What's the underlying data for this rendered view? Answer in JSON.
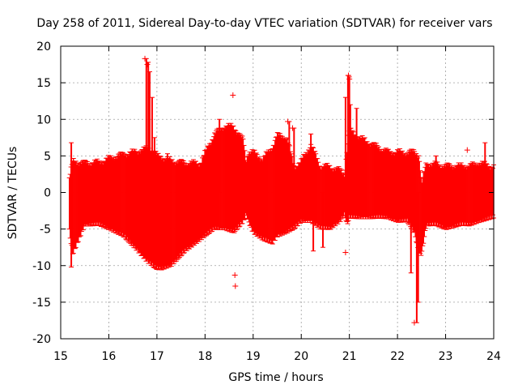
{
  "chart_data": {
    "type": "scatter",
    "title": "Day 258 of 2011, Sidereal Day-to-day VTEC variation (SDTVAR) for receiver vars",
    "xlabel": "GPS time / hours",
    "ylabel": "SDTVAR / TECUs",
    "xlim": [
      15,
      24
    ],
    "ylim": [
      -20,
      20
    ],
    "xticks": [
      15,
      16,
      17,
      18,
      19,
      20,
      21,
      22,
      23,
      24
    ],
    "yticks": [
      -20,
      -15,
      -10,
      -5,
      0,
      5,
      10,
      15,
      20
    ],
    "x_tick_labels": [
      "15",
      "16",
      "17",
      "18",
      "19",
      "20",
      "21",
      "22",
      "23",
      "24"
    ],
    "y_tick_labels": [
      "-20",
      "-15",
      "-10",
      "-5",
      "0",
      "5",
      "10",
      "15",
      "20"
    ],
    "grid": true,
    "marker": "+",
    "color": "#ff0000",
    "series": [
      {
        "name": "SDTVAR",
        "envelope": {
          "x": [
            15.18,
            15.25,
            15.5,
            15.8,
            16.0,
            16.3,
            16.6,
            16.8,
            16.95,
            17.0,
            17.1,
            17.3,
            17.6,
            17.9,
            18.2,
            18.4,
            18.6,
            18.8,
            18.85,
            18.9,
            19.0,
            19.2,
            19.4,
            19.5,
            19.7,
            19.85,
            20.0,
            20.2,
            20.4,
            20.6,
            20.8,
            20.9,
            20.95,
            21.0,
            21.2,
            21.5,
            21.8,
            22.0,
            22.2,
            22.35,
            22.45,
            22.5,
            22.6,
            22.8,
            23.0,
            23.3,
            23.5,
            23.7,
            24.0
          ],
          "upper": [
            2.0,
            4.2,
            4.0,
            4.1,
            4.6,
            5.2,
            5.6,
            6.0,
            5.5,
            5.0,
            4.8,
            4.3,
            4.0,
            4.0,
            8.0,
            9.0,
            9.0,
            7.0,
            4.2,
            5.5,
            5.5,
            4.5,
            6.2,
            7.8,
            7.5,
            3.5,
            4.2,
            6.5,
            3.5,
            3.5,
            3.0,
            2.5,
            6.0,
            8.5,
            7.5,
            6.5,
            5.5,
            5.5,
            5.4,
            5.6,
            5.0,
            1.0,
            4.0,
            3.8,
            3.6,
            3.6,
            3.6,
            4.0,
            3.5
          ],
          "lower": [
            -5.0,
            -8.0,
            -4.0,
            -4.0,
            -4.5,
            -5.5,
            -7.5,
            -9.0,
            -9.8,
            -10.0,
            -10.0,
            -9.5,
            -7.5,
            -6.0,
            -4.5,
            -4.5,
            -5.0,
            -3.5,
            -2.5,
            -3.5,
            -5.0,
            -6.0,
            -6.5,
            -5.5,
            -5.0,
            -4.5,
            -3.5,
            -3.5,
            -4.5,
            -4.5,
            -3.5,
            -2.5,
            -4.0,
            -3.0,
            -3.0,
            -3.0,
            -3.0,
            -3.5,
            -3.5,
            -5.0,
            -8.0,
            -8.0,
            -4.0,
            -4.0,
            -4.5,
            -4.0,
            -4.0,
            -3.5,
            -3.0
          ]
        },
        "spikes": [
          {
            "x": 15.22,
            "ymin": -10.2,
            "ymax": 6.8
          },
          {
            "x": 16.78,
            "ymin": -5.0,
            "ymax": 18.3
          },
          {
            "x": 16.82,
            "ymin": -5.0,
            "ymax": 17.8
          },
          {
            "x": 16.85,
            "ymin": -5.0,
            "ymax": 16.5
          },
          {
            "x": 16.9,
            "ymin": -5.0,
            "ymax": 13.0
          },
          {
            "x": 16.95,
            "ymin": -5.0,
            "ymax": 7.5
          },
          {
            "x": 17.22,
            "ymin": 0.0,
            "ymax": 5.3
          },
          {
            "x": 17.8,
            "ymin": -6.8,
            "ymax": 0.0
          },
          {
            "x": 18.3,
            "ymin": 0.0,
            "ymax": 10.0
          },
          {
            "x": 19.75,
            "ymin": 0.0,
            "ymax": 9.7
          },
          {
            "x": 19.85,
            "ymin": 0.0,
            "ymax": 8.8
          },
          {
            "x": 20.2,
            "ymin": 0.0,
            "ymax": 8.0
          },
          {
            "x": 20.25,
            "ymin": -8.0,
            "ymax": 0.0
          },
          {
            "x": 20.45,
            "ymin": -7.5,
            "ymax": 0.0
          },
          {
            "x": 20.92,
            "ymin": 0.0,
            "ymax": 13.0
          },
          {
            "x": 20.97,
            "ymin": 0.0,
            "ymax": 16.0
          },
          {
            "x": 21.0,
            "ymin": 0.0,
            "ymax": 15.8
          },
          {
            "x": 21.02,
            "ymin": 0.0,
            "ymax": 12.0
          },
          {
            "x": 21.15,
            "ymin": 0.0,
            "ymax": 11.5
          },
          {
            "x": 22.28,
            "ymin": -11.0,
            "ymax": 0.0
          },
          {
            "x": 22.4,
            "ymin": -17.8,
            "ymax": 0.0
          },
          {
            "x": 22.43,
            "ymin": -15.0,
            "ymax": 0.0
          },
          {
            "x": 22.8,
            "ymin": 0.0,
            "ymax": 5.0
          },
          {
            "x": 23.82,
            "ymin": 0.0,
            "ymax": 6.8
          }
        ],
        "outliers": [
          {
            "x": 16.75,
            "y": 18.3
          },
          {
            "x": 16.8,
            "y": 17.5
          },
          {
            "x": 18.58,
            "y": 13.3
          },
          {
            "x": 18.62,
            "y": -11.3
          },
          {
            "x": 18.63,
            "y": -12.8
          },
          {
            "x": 19.72,
            "y": 9.7
          },
          {
            "x": 19.82,
            "y": 8.8
          },
          {
            "x": 20.92,
            "y": -8.2
          },
          {
            "x": 20.98,
            "y": 16.0
          },
          {
            "x": 21.0,
            "y": 15.5
          },
          {
            "x": 22.35,
            "y": -17.8
          },
          {
            "x": 23.45,
            "y": 5.8
          }
        ]
      }
    ]
  }
}
